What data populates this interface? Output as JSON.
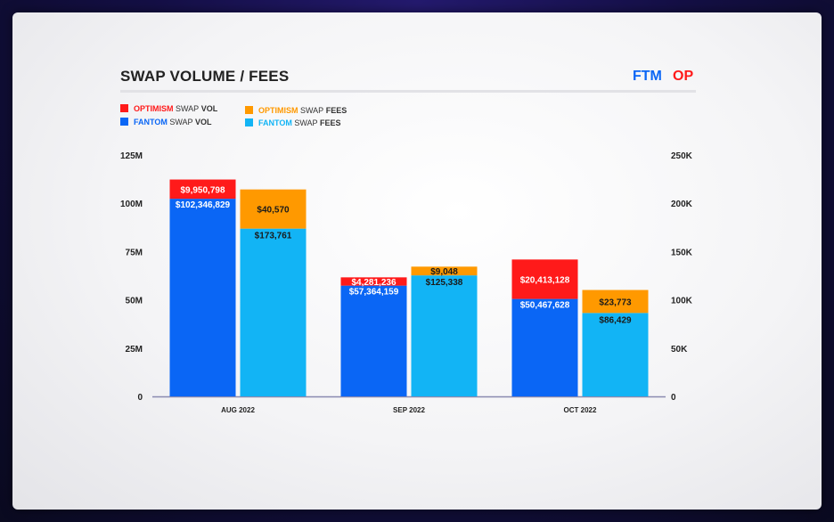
{
  "header": {
    "title": "SWAP VOLUME / FEES",
    "brand_ftm": "FTM",
    "brand_op": "OP"
  },
  "legend": [
    {
      "brand": "OPTIMISM",
      "mid": "SWAP",
      "metric": "VOL",
      "color": "#ff1a1a"
    },
    {
      "brand": "OPTIMISM",
      "mid": "SWAP",
      "metric": "FEES",
      "color": "#ff9900"
    },
    {
      "brand": "FANTOM",
      "mid": "SWAP",
      "metric": "VOL",
      "color": "#0a66f5"
    },
    {
      "brand": "FANTOM",
      "mid": "SWAP",
      "metric": "FEES",
      "color": "#12b4f5"
    }
  ],
  "colors": {
    "optimism_vol": "#ff1a1a",
    "optimism_fees": "#ff9900",
    "fantom_vol": "#0a66f5",
    "fantom_fees": "#12b4f5",
    "ftm_brand": "#0a66f5",
    "op_brand": "#ff1a1a"
  },
  "chart_data": {
    "type": "bar",
    "stacked": true,
    "dual_axis": true,
    "categories": [
      "AUG 2022",
      "SEP 2022",
      "OCT 2022"
    ],
    "left_axis": {
      "ylim": [
        0,
        125000000
      ],
      "ticks": [
        "0",
        "25M",
        "50M",
        "75M",
        "100M",
        "125M"
      ]
    },
    "right_axis": {
      "ylim": [
        0,
        250000
      ],
      "ticks": [
        "0",
        "50K",
        "100K",
        "150K",
        "200K",
        "250K"
      ]
    },
    "series": [
      {
        "name": "FANTOM SWAP VOL",
        "axis": "left",
        "stack": "vol",
        "values": [
          102346829,
          57364159,
          50467628
        ],
        "labels": [
          "$102,346,829",
          "$57,364,159",
          "$50,467,628"
        ]
      },
      {
        "name": "OPTIMISM SWAP VOL",
        "axis": "left",
        "stack": "vol",
        "values": [
          9950798,
          4281236,
          20413128
        ],
        "labels": [
          "$9,950,798",
          "$4,281,236",
          "$20,413,128"
        ]
      },
      {
        "name": "FANTOM SWAP FEES",
        "axis": "right",
        "stack": "fees",
        "values": [
          173761,
          125338,
          86429
        ],
        "labels": [
          "$173,761",
          "$125,338",
          "$86,429"
        ]
      },
      {
        "name": "OPTIMISM SWAP FEES",
        "axis": "right",
        "stack": "fees",
        "values": [
          40570,
          9048,
          23773
        ],
        "labels": [
          "$40,570",
          "$9,048",
          "$23,773"
        ]
      }
    ],
    "title": "SWAP VOLUME / FEES",
    "grid": false,
    "legend_position": "top-left"
  }
}
